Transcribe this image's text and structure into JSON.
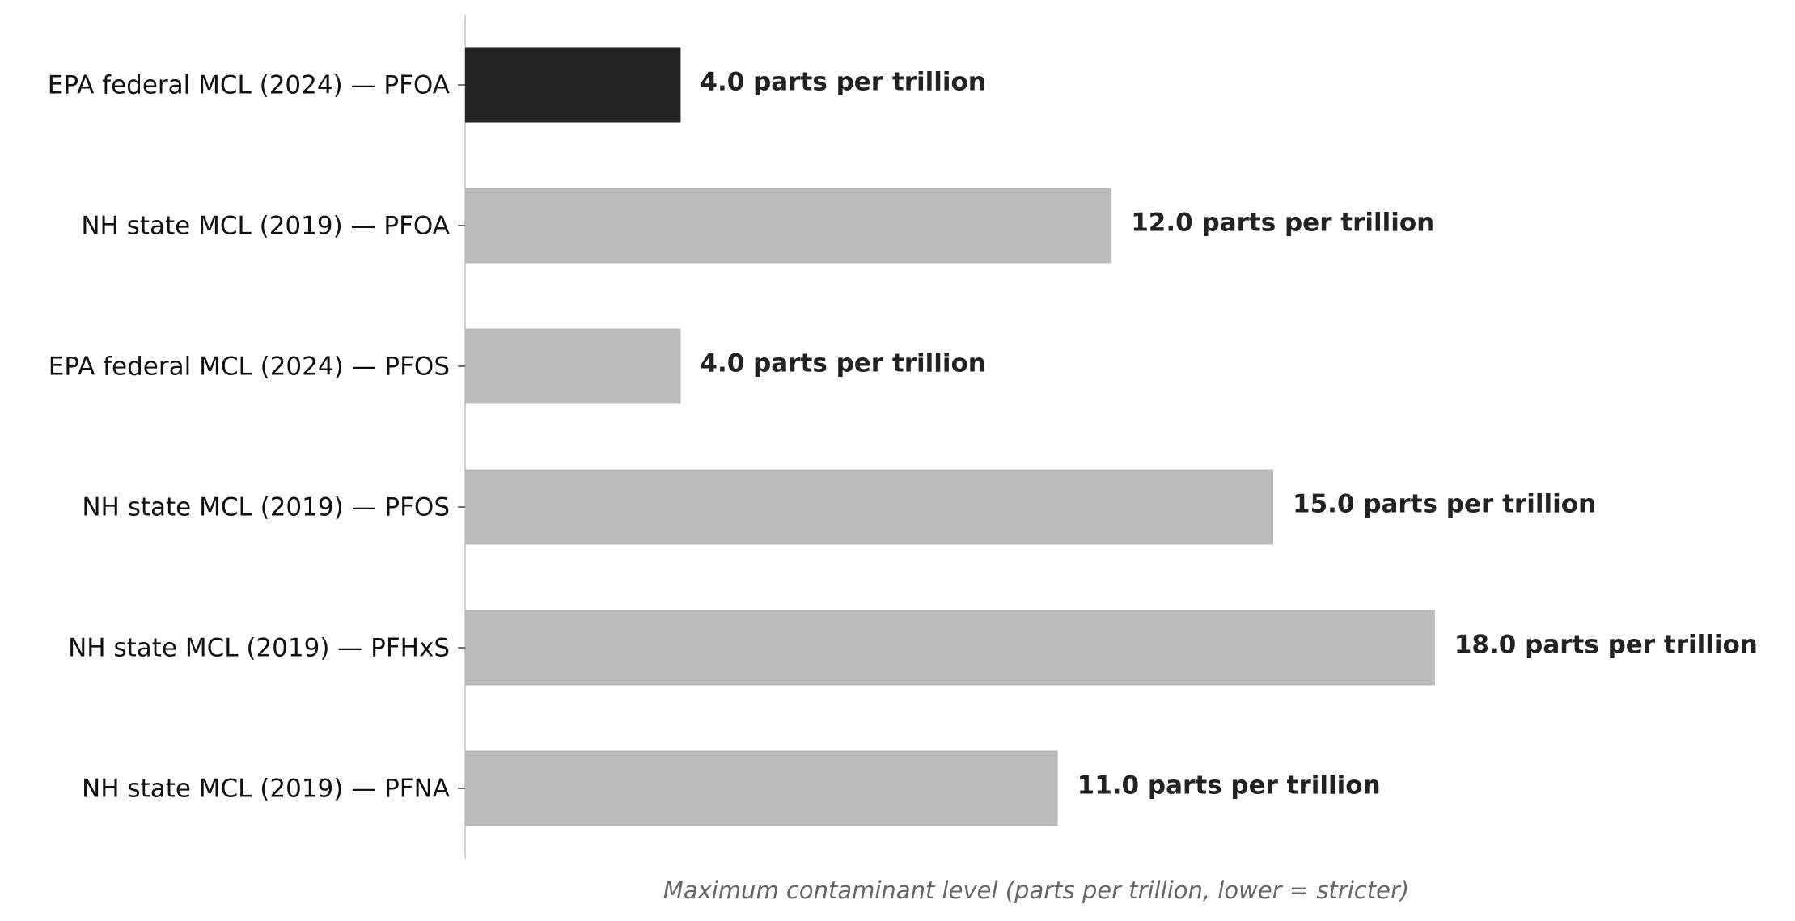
{
  "chart_data": {
    "type": "bar",
    "orientation": "horizontal",
    "categories": [
      "EPA federal MCL (2024) — PFOA",
      "NH state MCL (2019) — PFOA",
      "EPA federal MCL (2024) — PFOS",
      "NH state MCL (2019) — PFOS",
      "NH state MCL (2019) — PFHxS",
      "NH state MCL (2019) — PFNA"
    ],
    "values": [
      4,
      12,
      4,
      15,
      18,
      11
    ],
    "value_labels": [
      "4.0 parts per trillion",
      "12.0 parts per trillion",
      "4.0 parts per trillion",
      "15.0 parts per trillion",
      "18.0 parts per trillion",
      "11.0 parts per trillion"
    ],
    "colors": [
      "#222222",
      "#bbbbbb",
      "#bbbbbb",
      "#bbbbbb",
      "#bbbbbb",
      "#bbbbbb"
    ],
    "xlabel": "Maximum contaminant level (parts per trillion, lower = stricter)",
    "xlim": [
      0,
      21.2
    ]
  }
}
